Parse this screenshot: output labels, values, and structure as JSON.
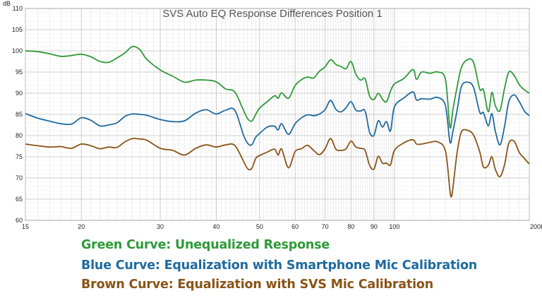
{
  "chart_data": {
    "type": "line",
    "title": "SVS Auto EQ Response Differences Position 1",
    "ylabel": "dB",
    "x_unit": "Hz",
    "x_scale": "log",
    "xlim": [
      15,
      200
    ],
    "ylim": [
      60,
      110
    ],
    "x_ticks": [
      15,
      20,
      30,
      40,
      50,
      60,
      70,
      80,
      90,
      100,
      200
    ],
    "x_tick_labels": [
      "15",
      "20",
      "30",
      "40",
      "50",
      "60",
      "70",
      "80",
      "90",
      "100",
      "200Hz"
    ],
    "y_ticks": [
      60,
      65,
      70,
      75,
      80,
      85,
      90,
      95,
      100,
      105,
      110
    ],
    "grid": true,
    "series": [
      {
        "name": "Green Curve: Unequalized Response",
        "color": "#2e9a38",
        "points": [
          [
            15,
            100
          ],
          [
            16,
            99.8
          ],
          [
            17,
            99.3
          ],
          [
            18,
            98.7
          ],
          [
            19,
            98.9
          ],
          [
            20,
            99.2
          ],
          [
            21,
            98.6
          ],
          [
            22,
            97.5
          ],
          [
            23,
            97.3
          ],
          [
            24,
            98.3
          ],
          [
            25,
            99.5
          ],
          [
            26,
            101
          ],
          [
            27,
            100.3
          ],
          [
            28,
            98
          ],
          [
            30,
            95.5
          ],
          [
            32,
            94
          ],
          [
            34,
            92.6
          ],
          [
            36,
            93.1
          ],
          [
            38,
            93.1
          ],
          [
            40,
            92.7
          ],
          [
            42,
            91
          ],
          [
            44,
            90.3
          ],
          [
            46,
            86
          ],
          [
            47,
            84
          ],
          [
            48,
            83.4
          ],
          [
            49,
            85
          ],
          [
            50,
            86.5
          ],
          [
            52,
            88
          ],
          [
            54,
            89.4
          ],
          [
            55,
            88.8
          ],
          [
            56,
            90.1
          ],
          [
            58,
            88.8
          ],
          [
            60,
            91.8
          ],
          [
            62,
            93.2
          ],
          [
            64,
            93.8
          ],
          [
            66,
            93.6
          ],
          [
            68,
            95.2
          ],
          [
            70,
            96.2
          ],
          [
            72,
            97.9
          ],
          [
            74,
            96.8
          ],
          [
            76,
            96.3
          ],
          [
            78,
            95.8
          ],
          [
            80,
            97.5
          ],
          [
            82,
            94.5
          ],
          [
            84,
            93.1
          ],
          [
            86,
            93.4
          ],
          [
            88,
            89.3
          ],
          [
            90,
            88.5
          ],
          [
            92,
            90
          ],
          [
            94,
            88.6
          ],
          [
            96,
            88
          ],
          [
            98,
            90.5
          ],
          [
            100,
            92.2
          ],
          [
            105,
            93.5
          ],
          [
            110,
            95.6
          ],
          [
            112,
            93.3
          ],
          [
            115,
            95
          ],
          [
            120,
            94.7
          ],
          [
            125,
            95
          ],
          [
            130,
            93.2
          ],
          [
            133,
            82
          ],
          [
            135,
            86
          ],
          [
            138,
            91.5
          ],
          [
            141,
            96
          ],
          [
            145,
            97.8
          ],
          [
            150,
            97.4
          ],
          [
            155,
            91
          ],
          [
            158,
            90.8
          ],
          [
            162,
            85.6
          ],
          [
            165,
            90.2
          ],
          [
            168,
            87
          ],
          [
            172,
            85.9
          ],
          [
            176,
            91
          ],
          [
            180,
            95
          ],
          [
            185,
            94.2
          ],
          [
            190,
            92
          ],
          [
            195,
            90.8
          ],
          [
            200,
            90
          ]
        ]
      },
      {
        "name": "Blue Curve: Equalization with Smartphone Mic Calibration",
        "color": "#1f6aa0",
        "points": [
          [
            15,
            85.2
          ],
          [
            16,
            84.1
          ],
          [
            17,
            83.4
          ],
          [
            18,
            82.8
          ],
          [
            19,
            82.7
          ],
          [
            20,
            84.2
          ],
          [
            21,
            83.6
          ],
          [
            22,
            82.3
          ],
          [
            23,
            82.5
          ],
          [
            24,
            83
          ],
          [
            25,
            84.5
          ],
          [
            26,
            85.1
          ],
          [
            27,
            85
          ],
          [
            28,
            84.8
          ],
          [
            30,
            83.8
          ],
          [
            32,
            83.3
          ],
          [
            34,
            83.5
          ],
          [
            36,
            85.3
          ],
          [
            38,
            86.1
          ],
          [
            40,
            85.1
          ],
          [
            42,
            86
          ],
          [
            44,
            86
          ],
          [
            46,
            80.2
          ],
          [
            47,
            78.2
          ],
          [
            48,
            77.8
          ],
          [
            49,
            79.6
          ],
          [
            50,
            80.5
          ],
          [
            52,
            82
          ],
          [
            54,
            82.2
          ],
          [
            55,
            81.3
          ],
          [
            56,
            82.8
          ],
          [
            58,
            80.3
          ],
          [
            60,
            82.8
          ],
          [
            62,
            84.2
          ],
          [
            64,
            84.9
          ],
          [
            66,
            84.7
          ],
          [
            68,
            85.1
          ],
          [
            70,
            86.1
          ],
          [
            72,
            88.3
          ],
          [
            74,
            86.2
          ],
          [
            76,
            85.6
          ],
          [
            78,
            86.6
          ],
          [
            80,
            88
          ],
          [
            82,
            86
          ],
          [
            84,
            85.8
          ],
          [
            86,
            85.8
          ],
          [
            88,
            80.8
          ],
          [
            90,
            80.1
          ],
          [
            92,
            83.5
          ],
          [
            94,
            82
          ],
          [
            96,
            83.3
          ],
          [
            98,
            81.1
          ],
          [
            100,
            86.8
          ],
          [
            105,
            88.9
          ],
          [
            110,
            90.3
          ],
          [
            112,
            88.4
          ],
          [
            115,
            88.7
          ],
          [
            120,
            88.6
          ],
          [
            125,
            89
          ],
          [
            130,
            87
          ],
          [
            133,
            78.5
          ],
          [
            135,
            80.9
          ],
          [
            138,
            86
          ],
          [
            141,
            91.5
          ],
          [
            145,
            92.6
          ],
          [
            150,
            91.5
          ],
          [
            155,
            85.5
          ],
          [
            158,
            85.4
          ],
          [
            162,
            82.3
          ],
          [
            165,
            85.2
          ],
          [
            168,
            81
          ],
          [
            172,
            77.8
          ],
          [
            176,
            82
          ],
          [
            180,
            88
          ],
          [
            185,
            89.6
          ],
          [
            190,
            88
          ],
          [
            195,
            85.8
          ],
          [
            200,
            84.7
          ]
        ]
      },
      {
        "name": "Brown Curve: Equalization with SVS Mic Calibration",
        "color": "#8a5416",
        "points": [
          [
            15,
            78
          ],
          [
            16,
            77.6
          ],
          [
            17,
            77.3
          ],
          [
            18,
            77.4
          ],
          [
            19,
            77
          ],
          [
            20,
            78
          ],
          [
            21,
            77.6
          ],
          [
            22,
            76.9
          ],
          [
            23,
            77.3
          ],
          [
            24,
            77.2
          ],
          [
            25,
            78.5
          ],
          [
            26,
            79.3
          ],
          [
            27,
            79.2
          ],
          [
            28,
            78.9
          ],
          [
            30,
            77
          ],
          [
            32,
            76.5
          ],
          [
            34,
            75.4
          ],
          [
            36,
            77
          ],
          [
            38,
            77.8
          ],
          [
            40,
            77.3
          ],
          [
            42,
            77.8
          ],
          [
            44,
            77.7
          ],
          [
            46,
            74
          ],
          [
            47,
            72.2
          ],
          [
            48,
            72.2
          ],
          [
            49,
            74.6
          ],
          [
            50,
            75.3
          ],
          [
            52,
            76.1
          ],
          [
            54,
            76.8
          ],
          [
            55,
            75.4
          ],
          [
            56,
            76.8
          ],
          [
            58,
            72.4
          ],
          [
            60,
            76.2
          ],
          [
            62,
            76.9
          ],
          [
            64,
            77.7
          ],
          [
            66,
            76.5
          ],
          [
            68,
            75.5
          ],
          [
            70,
            76.9
          ],
          [
            72,
            79.3
          ],
          [
            74,
            76.8
          ],
          [
            76,
            76.5
          ],
          [
            78,
            76.9
          ],
          [
            80,
            78.7
          ],
          [
            82,
            77.3
          ],
          [
            84,
            77
          ],
          [
            86,
            76.5
          ],
          [
            88,
            73
          ],
          [
            90,
            72.1
          ],
          [
            92,
            75.1
          ],
          [
            94,
            73.5
          ],
          [
            96,
            73.5
          ],
          [
            98,
            73.1
          ],
          [
            100,
            76.5
          ],
          [
            105,
            78.3
          ],
          [
            110,
            79
          ],
          [
            112,
            78
          ],
          [
            115,
            78
          ],
          [
            120,
            78.4
          ],
          [
            125,
            78.5
          ],
          [
            130,
            76.3
          ],
          [
            133,
            67
          ],
          [
            134,
            65.6
          ],
          [
            135,
            67.5
          ],
          [
            138,
            76
          ],
          [
            141,
            80.8
          ],
          [
            145,
            81.3
          ],
          [
            150,
            80.2
          ],
          [
            155,
            76.2
          ],
          [
            158,
            72.6
          ],
          [
            162,
            73
          ],
          [
            165,
            75
          ],
          [
            168,
            72
          ],
          [
            172,
            70.3
          ],
          [
            176,
            73
          ],
          [
            180,
            78.2
          ],
          [
            185,
            78.7
          ],
          [
            190,
            76
          ],
          [
            195,
            74.6
          ],
          [
            200,
            73.3
          ]
        ]
      }
    ]
  }
}
